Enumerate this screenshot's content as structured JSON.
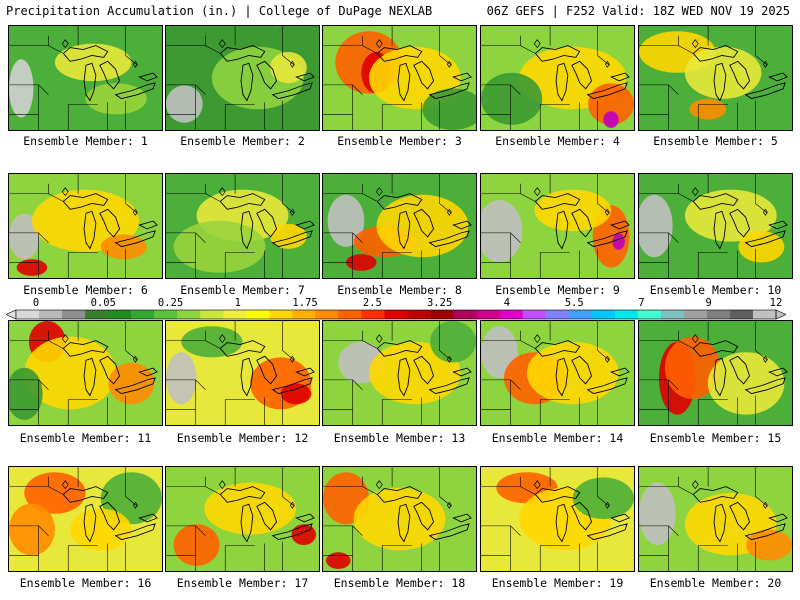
{
  "header": {
    "left_title": "Precipitation Accumulation (in.) | College of DuPage NEXLAB",
    "right_title": "06Z GEFS | F252 Valid: 18Z WED NOV 19 2025"
  },
  "colorbar": {
    "tick_labels": [
      "0",
      "0.05",
      "0.25",
      "1",
      "1.75",
      "2.5",
      "3.25",
      "4",
      "5.5",
      "7",
      "9",
      "12"
    ],
    "colors": [
      "#d9d9d9",
      "#b8b8b8",
      "#8f8f8f",
      "#3a7d2a",
      "#228b22",
      "#32a832",
      "#5cc23c",
      "#8ed43e",
      "#c8e63c",
      "#f0f03c",
      "#ffff00",
      "#ffd700",
      "#ffb000",
      "#ff8c00",
      "#ff6000",
      "#ff3000",
      "#e00000",
      "#c00000",
      "#a00000",
      "#b0005a",
      "#d0008c",
      "#e000c8",
      "#c050ff",
      "#8080ff",
      "#40a0ff",
      "#00c8ff",
      "#00e8e8",
      "#40ffd0",
      "#80c0c0",
      "#a0a0a0",
      "#808080",
      "#606060",
      "#c0c0c0"
    ]
  },
  "members": [
    {
      "label": "Ensemble Member: 1",
      "base": "#4caf3a",
      "blobs": [
        [
          "#d0d0d0",
          0.08,
          0.6,
          0.08,
          0.28
        ],
        [
          "#e8e83a",
          0.55,
          0.35,
          0.25,
          0.18
        ],
        [
          "#9ad43c",
          0.7,
          0.7,
          0.2,
          0.15
        ]
      ]
    },
    {
      "label": "Ensemble Member: 2",
      "base": "#3d9a32",
      "blobs": [
        [
          "#c0c0c0",
          0.12,
          0.75,
          0.12,
          0.18
        ],
        [
          "#8ed43e",
          0.6,
          0.5,
          0.3,
          0.3
        ],
        [
          "#e8e83a",
          0.8,
          0.4,
          0.12,
          0.15
        ]
      ]
    },
    {
      "label": "Ensemble Member: 3",
      "base": "#8ed43e",
      "blobs": [
        [
          "#ff6000",
          0.3,
          0.35,
          0.22,
          0.3
        ],
        [
          "#e00000",
          0.35,
          0.45,
          0.1,
          0.2
        ],
        [
          "#ffd700",
          0.6,
          0.5,
          0.3,
          0.3
        ],
        [
          "#3d9a32",
          0.85,
          0.8,
          0.2,
          0.2
        ]
      ]
    },
    {
      "label": "Ensemble Member: 4",
      "base": "#8ed43e",
      "blobs": [
        [
          "#ffd700",
          0.6,
          0.5,
          0.35,
          0.3
        ],
        [
          "#ff6000",
          0.85,
          0.75,
          0.15,
          0.2
        ],
        [
          "#c000c0",
          0.85,
          0.9,
          0.05,
          0.08
        ],
        [
          "#3d9a32",
          0.2,
          0.7,
          0.2,
          0.25
        ]
      ]
    },
    {
      "label": "Ensemble Member: 5",
      "base": "#4caf3a",
      "blobs": [
        [
          "#ffd700",
          0.25,
          0.25,
          0.25,
          0.2
        ],
        [
          "#e8e83a",
          0.55,
          0.45,
          0.25,
          0.25
        ],
        [
          "#ff8c00",
          0.45,
          0.8,
          0.12,
          0.1
        ]
      ]
    },
    {
      "label": "Ensemble Member: 6",
      "base": "#8ed43e",
      "blobs": [
        [
          "#c0c0c0",
          0.1,
          0.6,
          0.1,
          0.22
        ],
        [
          "#ffd700",
          0.5,
          0.45,
          0.35,
          0.3
        ],
        [
          "#e00000",
          0.15,
          0.9,
          0.1,
          0.08
        ],
        [
          "#ff8c00",
          0.75,
          0.7,
          0.15,
          0.12
        ]
      ]
    },
    {
      "label": "Ensemble Member: 7",
      "base": "#4caf3a",
      "blobs": [
        [
          "#e8e83a",
          0.5,
          0.4,
          0.3,
          0.25
        ],
        [
          "#9ad43c",
          0.35,
          0.7,
          0.3,
          0.25
        ],
        [
          "#ffd700",
          0.8,
          0.6,
          0.12,
          0.12
        ]
      ]
    },
    {
      "label": "Ensemble Member: 8",
      "base": "#4caf3a",
      "blobs": [
        [
          "#c0c0c0",
          0.15,
          0.45,
          0.12,
          0.25
        ],
        [
          "#ff6000",
          0.4,
          0.65,
          0.2,
          0.15
        ],
        [
          "#ffd700",
          0.65,
          0.5,
          0.3,
          0.3
        ],
        [
          "#e00000",
          0.25,
          0.85,
          0.1,
          0.08
        ]
      ]
    },
    {
      "label": "Ensemble Member: 9",
      "base": "#8ed43e",
      "blobs": [
        [
          "#c0c0c0",
          0.12,
          0.55,
          0.15,
          0.3
        ],
        [
          "#ff6000",
          0.85,
          0.6,
          0.12,
          0.3
        ],
        [
          "#c000c0",
          0.9,
          0.65,
          0.04,
          0.08
        ],
        [
          "#ffd700",
          0.6,
          0.35,
          0.25,
          0.2
        ]
      ]
    },
    {
      "label": "Ensemble Member: 10",
      "base": "#4caf3a",
      "blobs": [
        [
          "#c0c0c0",
          0.1,
          0.5,
          0.12,
          0.3
        ],
        [
          "#e8e83a",
          0.6,
          0.4,
          0.3,
          0.25
        ],
        [
          "#ffd700",
          0.8,
          0.7,
          0.15,
          0.15
        ]
      ]
    },
    {
      "label": "Ensemble Member: 11",
      "base": "#8ed43e",
      "blobs": [
        [
          "#e00000",
          0.25,
          0.2,
          0.12,
          0.2
        ],
        [
          "#ffd700",
          0.4,
          0.5,
          0.3,
          0.35
        ],
        [
          "#3d9a32",
          0.1,
          0.7,
          0.12,
          0.25
        ],
        [
          "#ff8c00",
          0.8,
          0.6,
          0.15,
          0.2
        ]
      ]
    },
    {
      "label": "Ensemble Member: 12",
      "base": "#e8e83a",
      "blobs": [
        [
          "#c0c0c0",
          0.1,
          0.55,
          0.1,
          0.25
        ],
        [
          "#ff6000",
          0.75,
          0.6,
          0.2,
          0.25
        ],
        [
          "#e00000",
          0.85,
          0.7,
          0.1,
          0.1
        ],
        [
          "#4caf3a",
          0.3,
          0.2,
          0.2,
          0.15
        ]
      ]
    },
    {
      "label": "Ensemble Member: 13",
      "base": "#8ed43e",
      "blobs": [
        [
          "#c0c0c0",
          0.25,
          0.4,
          0.15,
          0.2
        ],
        [
          "#ffd700",
          0.6,
          0.5,
          0.3,
          0.3
        ],
        [
          "#4caf3a",
          0.85,
          0.2,
          0.15,
          0.2
        ]
      ]
    },
    {
      "label": "Ensemble Member: 14",
      "base": "#8ed43e",
      "blobs": [
        [
          "#c0c0c0",
          0.12,
          0.3,
          0.12,
          0.25
        ],
        [
          "#ff6000",
          0.35,
          0.55,
          0.2,
          0.25
        ],
        [
          "#ffd700",
          0.6,
          0.5,
          0.3,
          0.3
        ]
      ]
    },
    {
      "label": "Ensemble Member: 15",
      "base": "#4caf3a",
      "blobs": [
        [
          "#e00000",
          0.25,
          0.55,
          0.12,
          0.35
        ],
        [
          "#ff6000",
          0.35,
          0.45,
          0.18,
          0.3
        ],
        [
          "#e8e83a",
          0.7,
          0.6,
          0.25,
          0.3
        ]
      ]
    },
    {
      "label": "Ensemble Member: 16",
      "base": "#e8e83a",
      "blobs": [
        [
          "#ff6000",
          0.3,
          0.25,
          0.2,
          0.2
        ],
        [
          "#ff8c00",
          0.15,
          0.6,
          0.15,
          0.25
        ],
        [
          "#4caf3a",
          0.8,
          0.3,
          0.2,
          0.25
        ],
        [
          "#ffd700",
          0.6,
          0.6,
          0.2,
          0.2
        ]
      ]
    },
    {
      "label": "Ensemble Member: 17",
      "base": "#8ed43e",
      "blobs": [
        [
          "#ff6000",
          0.2,
          0.75,
          0.15,
          0.2
        ],
        [
          "#ffd700",
          0.55,
          0.4,
          0.3,
          0.25
        ],
        [
          "#e00000",
          0.9,
          0.65,
          0.08,
          0.1
        ]
      ]
    },
    {
      "label": "Ensemble Member: 18",
      "base": "#8ed43e",
      "blobs": [
        [
          "#ff6000",
          0.15,
          0.3,
          0.15,
          0.25
        ],
        [
          "#ffd700",
          0.5,
          0.5,
          0.3,
          0.3
        ],
        [
          "#e00000",
          0.1,
          0.9,
          0.08,
          0.08
        ]
      ]
    },
    {
      "label": "Ensemble Member: 19",
      "base": "#e8e83a",
      "blobs": [
        [
          "#ff6000",
          0.3,
          0.2,
          0.2,
          0.15
        ],
        [
          "#ffd700",
          0.55,
          0.5,
          0.3,
          0.3
        ],
        [
          "#4caf3a",
          0.8,
          0.3,
          0.2,
          0.2
        ]
      ]
    },
    {
      "label": "Ensemble Member: 20",
      "base": "#8ed43e",
      "blobs": [
        [
          "#c0c0c0",
          0.12,
          0.45,
          0.12,
          0.3
        ],
        [
          "#ffd700",
          0.6,
          0.55,
          0.3,
          0.3
        ],
        [
          "#ff8c00",
          0.85,
          0.75,
          0.15,
          0.15
        ]
      ]
    }
  ]
}
